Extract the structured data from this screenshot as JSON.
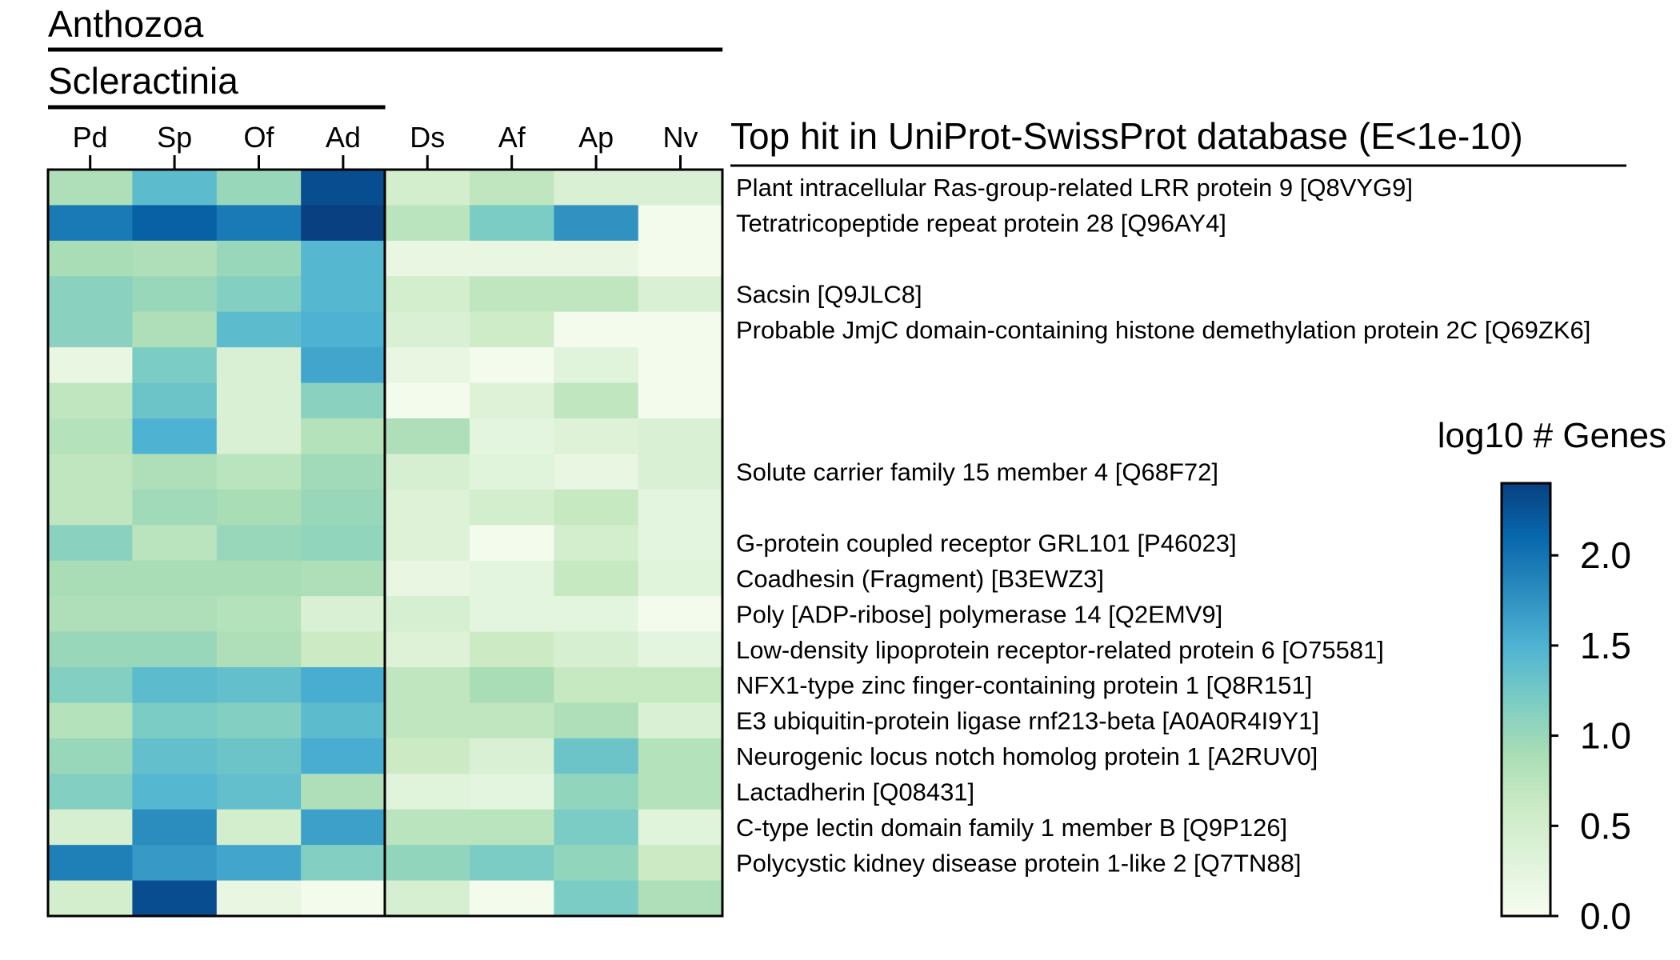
{
  "chart_data": {
    "type": "heatmap",
    "groups": [
      {
        "label": "Anthozoa",
        "columns": [
          "Pd",
          "Sp",
          "Of",
          "Ad",
          "Ds",
          "Af",
          "Ap",
          "Nv"
        ]
      },
      {
        "label": "Scleractinia",
        "columns": [
          "Pd",
          "Sp",
          "Of",
          "Ad"
        ]
      }
    ],
    "columns": [
      "Pd",
      "Sp",
      "Of",
      "Ad",
      "Ds",
      "Af",
      "Ap",
      "Nv"
    ],
    "row_header": "Top hit in UniProt-SwissProt database (E<1e-10)",
    "rows": [
      "Plant intracellular Ras-group-related LRR protein 9 [Q8VYG9]",
      "Tetratricopeptide repeat protein 28 [Q96AY4]",
      "",
      "Sacsin [Q9JLC8]",
      "Probable JmjC domain-containing histone demethylation protein 2C [Q69ZK6]",
      "",
      "",
      "",
      "Solute carrier family 15 member 4 [Q68F72]",
      "",
      "G-protein coupled receptor GRL101 [P46023]",
      "Coadhesin (Fragment) [B3EWZ3]",
      "Poly [ADP-ribose] polymerase 14 [Q2EMV9]",
      "Low-density lipoprotein receptor-related protein 6 [O75581]",
      "NFX1-type zinc finger-containing protein 1 [Q8R151]",
      "E3 ubiquitin-protein ligase rnf213-beta [A0A0R4I9Y1]",
      "Neurogenic locus notch homolog protein 1 [A2RUV0]",
      "Lactadherin [Q08431]",
      "C-type lectin domain family 1 member B [Q9P126]",
      "Polycystic kidney disease protein 1-like 2 [Q7TN88]",
      ""
    ],
    "values": [
      [
        0.85,
        1.4,
        1.0,
        2.3,
        0.5,
        0.7,
        0.4,
        0.4
      ],
      [
        1.95,
        2.15,
        1.95,
        2.4,
        0.75,
        1.2,
        1.75,
        0.05
      ],
      [
        0.9,
        0.85,
        1.0,
        1.45,
        0.2,
        0.2,
        0.2,
        0.05
      ],
      [
        1.1,
        1.0,
        1.15,
        1.45,
        0.5,
        0.7,
        0.7,
        0.4
      ],
      [
        1.1,
        0.85,
        1.4,
        1.5,
        0.4,
        0.55,
        0.05,
        0.05
      ],
      [
        0.2,
        1.2,
        0.4,
        1.6,
        0.2,
        0.05,
        0.3,
        0.05
      ],
      [
        0.7,
        1.3,
        0.4,
        1.1,
        0.05,
        0.35,
        0.7,
        0.05
      ],
      [
        0.8,
        1.5,
        0.4,
        0.8,
        0.85,
        0.25,
        0.35,
        0.4
      ],
      [
        0.7,
        0.85,
        0.75,
        0.95,
        0.45,
        0.3,
        0.2,
        0.4
      ],
      [
        0.7,
        0.95,
        0.9,
        1.0,
        0.35,
        0.5,
        0.65,
        0.25
      ],
      [
        1.1,
        0.75,
        1.0,
        1.05,
        0.35,
        0.05,
        0.5,
        0.25
      ],
      [
        0.9,
        0.9,
        0.9,
        0.85,
        0.2,
        0.25,
        0.65,
        0.3
      ],
      [
        0.85,
        0.85,
        0.8,
        0.4,
        0.45,
        0.25,
        0.25,
        0.05
      ],
      [
        1.0,
        1.0,
        0.85,
        0.6,
        0.35,
        0.6,
        0.45,
        0.25
      ],
      [
        1.15,
        1.4,
        1.35,
        1.55,
        0.7,
        0.9,
        0.65,
        0.65
      ],
      [
        0.8,
        1.2,
        1.15,
        1.4,
        0.7,
        0.7,
        0.85,
        0.4
      ],
      [
        1.0,
        1.35,
        1.3,
        1.55,
        0.6,
        0.4,
        1.3,
        0.8
      ],
      [
        1.15,
        1.45,
        1.35,
        0.85,
        0.3,
        0.25,
        1.05,
        0.8
      ],
      [
        0.45,
        1.8,
        0.5,
        1.65,
        0.75,
        0.75,
        1.2,
        0.3
      ],
      [
        1.9,
        1.7,
        1.6,
        1.15,
        1.05,
        1.2,
        1.05,
        0.6
      ],
      [
        0.5,
        2.3,
        0.2,
        0.05,
        0.45,
        0.05,
        1.2,
        0.85
      ]
    ],
    "colorbar": {
      "title": "log10 # Genes",
      "min": 0.0,
      "max": 2.4,
      "ticks": [
        0.0,
        0.5,
        1.0,
        1.5,
        2.0
      ],
      "tick_labels": [
        "0.0",
        "0.5",
        "1.0",
        "1.5",
        "2.0"
      ],
      "colormap": "GnBu",
      "colors": [
        "#f7fcf0",
        "#e0f3db",
        "#ccebc5",
        "#a8ddb5",
        "#7bccc4",
        "#4eb3d3",
        "#2b8cbe",
        "#0868ac",
        "#084081"
      ]
    },
    "separator_after_column": "Ad"
  }
}
